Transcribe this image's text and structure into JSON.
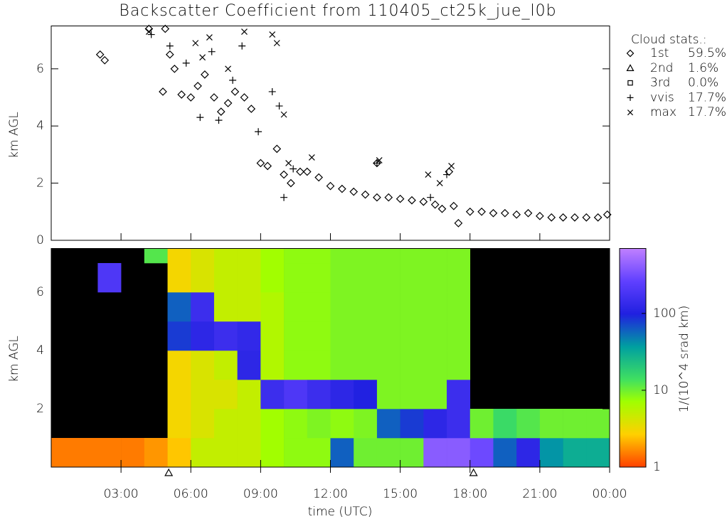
{
  "chart_data": [
    {
      "type": "scatter",
      "title": "Backscatter Coefficient from 110405_ct25k_jue_l0b",
      "ylabel": "km AGL",
      "xlim": [
        0,
        24
      ],
      "ylim": [
        0,
        7.5
      ],
      "yticks": [
        0,
        2,
        4,
        6
      ],
      "legend_title": "Cloud stats.:",
      "legend": "right",
      "series": [
        {
          "name": "1st",
          "stat": "59.5%",
          "marker": "diamond",
          "color": "#000000",
          "x": [
            2.1,
            2.3,
            4.2,
            4.9,
            4.8,
            5.1,
            5.3,
            5.6,
            6.0,
            6.3,
            6.6,
            7.0,
            7.3,
            7.6,
            7.9,
            8.3,
            8.6,
            9.0,
            9.3,
            9.7,
            10.0,
            10.3,
            10.7,
            11.0,
            11.5,
            12.0,
            12.5,
            13.0,
            13.5,
            14.0,
            14.0,
            14.5,
            15.0,
            15.5,
            16.0,
            16.5,
            16.8,
            17.1,
            17.3,
            17.5,
            18.0,
            18.5,
            19.0,
            19.5,
            20.0,
            20.5,
            21.0,
            21.5,
            22.0,
            22.5,
            23.0,
            23.5,
            23.9
          ],
          "values": [
            6.5,
            6.3,
            7.4,
            7.4,
            5.2,
            6.5,
            6.0,
            5.1,
            5.0,
            5.4,
            5.8,
            5.0,
            4.5,
            4.8,
            5.2,
            5.0,
            4.6,
            2.7,
            2.6,
            3.2,
            2.3,
            2.0,
            2.4,
            2.4,
            2.2,
            1.9,
            1.8,
            1.7,
            1.6,
            1.5,
            2.7,
            1.5,
            1.45,
            1.4,
            1.35,
            1.25,
            1.1,
            2.4,
            1.2,
            0.6,
            1.0,
            1.0,
            0.95,
            0.95,
            0.9,
            0.95,
            0.85,
            0.8,
            0.8,
            0.8,
            0.8,
            0.8,
            0.9
          ]
        },
        {
          "name": "2nd",
          "stat": "1.6%",
          "marker": "triangle",
          "color": "#000000",
          "x": [],
          "values": []
        },
        {
          "name": "3rd",
          "stat": "0.0%",
          "marker": "square",
          "color": "#000000",
          "x": [],
          "values": []
        },
        {
          "name": "vvis",
          "stat": "17.7%",
          "marker": "plus",
          "color": "#000000",
          "x": [
            4.3,
            5.1,
            5.8,
            6.4,
            6.9,
            7.2,
            7.8,
            8.2,
            8.9,
            9.5,
            9.8,
            10.0,
            10.4,
            14.0,
            16.3,
            17.0
          ],
          "values": [
            7.2,
            6.8,
            6.2,
            4.3,
            6.6,
            4.2,
            5.6,
            6.8,
            3.8,
            5.2,
            4.7,
            1.5,
            2.5,
            2.7,
            1.5,
            2.3
          ]
        },
        {
          "name": "max",
          "stat": "17.7%",
          "marker": "cross",
          "color": "#000000",
          "x": [
            4.2,
            6.2,
            6.5,
            6.8,
            7.6,
            8.3,
            9.5,
            9.7,
            10.0,
            10.2,
            11.2,
            14.1,
            16.2,
            16.7,
            17.2
          ],
          "values": [
            7.3,
            6.9,
            6.4,
            7.1,
            6.0,
            7.3,
            7.2,
            6.9,
            4.4,
            2.7,
            2.9,
            2.8,
            2.3,
            2.0,
            2.6
          ]
        }
      ]
    },
    {
      "type": "heatmap",
      "ylabel": "km AGL",
      "xlabel": "time (UTC)",
      "xlim": [
        0,
        24
      ],
      "ylim": [
        0,
        7.5
      ],
      "xticks": [
        {
          "value": 3,
          "label": "03:00"
        },
        {
          "value": 6,
          "label": "06:00"
        },
        {
          "value": 9,
          "label": "09:00"
        },
        {
          "value": 12,
          "label": "12:00"
        },
        {
          "value": 15,
          "label": "15:00"
        },
        {
          "value": 18,
          "label": "18:00"
        },
        {
          "value": 21,
          "label": "21:00"
        },
        {
          "value": 24,
          "label": "00:00"
        }
      ],
      "yticks": [
        2,
        4,
        6
      ],
      "x_bins": [
        0,
        1,
        2,
        3,
        4,
        5,
        6,
        7,
        8,
        9,
        10,
        11,
        12,
        13,
        14,
        15,
        16,
        17,
        18,
        19,
        20,
        21,
        22,
        23,
        24
      ],
      "y_bins": [
        0,
        1,
        2,
        3,
        4,
        5,
        6,
        7,
        8
      ],
      "z": [
        [
          1.5,
          null,
          null,
          null,
          null,
          null,
          null,
          null
        ],
        [
          1.5,
          null,
          null,
          null,
          null,
          null,
          null,
          null
        ],
        [
          1.5,
          null,
          null,
          null,
          null,
          null,
          200,
          null
        ],
        [
          1.5,
          null,
          null,
          null,
          null,
          null,
          null,
          null
        ],
        [
          1.8,
          null,
          null,
          null,
          null,
          null,
          null,
          12
        ],
        [
          2.5,
          3,
          3,
          3,
          80,
          60,
          3,
          3
        ],
        [
          5,
          4,
          4,
          4,
          120,
          150,
          4,
          4
        ],
        [
          5,
          5,
          4,
          5,
          150,
          5,
          5,
          5
        ],
        [
          5,
          5,
          5,
          120,
          130,
          5,
          5,
          5
        ],
        [
          7,
          7,
          150,
          6,
          6,
          6,
          7,
          7
        ],
        [
          8,
          8,
          200,
          8,
          8,
          8,
          8,
          8
        ],
        [
          8,
          9,
          150,
          8,
          8,
          8,
          8,
          8
        ],
        [
          60,
          8,
          120,
          9,
          9,
          9,
          9,
          9
        ],
        [
          10,
          9,
          100,
          9,
          9,
          9,
          9,
          9
        ],
        [
          10,
          60,
          9,
          9,
          9,
          9,
          9,
          9
        ],
        [
          10,
          80,
          9,
          9,
          9,
          9,
          9,
          9
        ],
        [
          400,
          120,
          9,
          9,
          9,
          9,
          9,
          9
        ],
        [
          400,
          150,
          150,
          9,
          9,
          9,
          9,
          9
        ],
        [
          300,
          10,
          null,
          null,
          null,
          null,
          null,
          null
        ],
        [
          60,
          15,
          null,
          null,
          null,
          null,
          null,
          null
        ],
        [
          120,
          12,
          null,
          null,
          null,
          null,
          null,
          null
        ],
        [
          40,
          10,
          null,
          null,
          null,
          null,
          null,
          null
        ],
        [
          30,
          10,
          null,
          null,
          null,
          null,
          null,
          null
        ],
        [
          30,
          10,
          null,
          null,
          null,
          null,
          null,
          null
        ]
      ],
      "log_color": true,
      "clim": [
        1,
        700
      ],
      "cticks": [
        1,
        10,
        100
      ],
      "clabel": "1/(10^4 srad km)",
      "markers_x": [
        5.05,
        18.15
      ]
    }
  ]
}
